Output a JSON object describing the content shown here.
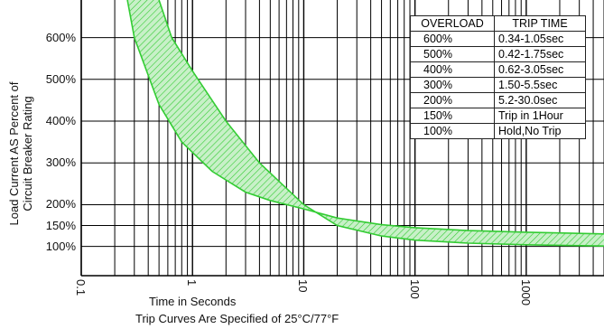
{
  "chart_data": {
    "type": "area",
    "title": "",
    "xlabel": "Time in Seconds",
    "ylabel_lines": [
      "Load Current AS Percent of",
      "Circuit Breaker Rating"
    ],
    "note": "Trip Curves Are Specified of 25°C/77°F",
    "x_scale": "log",
    "xlim": [
      0.1,
      5000
    ],
    "x_ticks": [
      "0.1",
      "1",
      "10",
      "100",
      "1000"
    ],
    "ylim": [
      30,
      690
    ],
    "y_ticks": [
      "100%",
      "150%",
      "200%",
      "300%",
      "400%",
      "500%",
      "600%"
    ],
    "y_tick_positions": [
      100,
      150,
      200,
      300,
      400,
      500,
      600
    ],
    "grid": true,
    "band_color": "#33cc33",
    "series": [
      {
        "points": [
          [
            0.26,
            690
          ],
          [
            0.3,
            600
          ],
          [
            0.5,
            440
          ],
          [
            0.8,
            350
          ],
          [
            1.5,
            280
          ],
          [
            3,
            230
          ],
          [
            5,
            210
          ],
          [
            10,
            190
          ],
          [
            20,
            168
          ],
          [
            50,
            152
          ],
          [
            100,
            145
          ],
          [
            300,
            138
          ],
          [
            1000,
            134
          ],
          [
            5000,
            130
          ]
        ]
      },
      {
        "points": [
          [
            0.5,
            690
          ],
          [
            0.65,
            600
          ],
          [
            1,
            520
          ],
          [
            2,
            400
          ],
          [
            4,
            300
          ],
          [
            10,
            200
          ],
          [
            20,
            150
          ],
          [
            50,
            125
          ],
          [
            100,
            115
          ],
          [
            300,
            108
          ],
          [
            1000,
            104
          ],
          [
            5000,
            101
          ]
        ]
      }
    ],
    "table": {
      "headers": [
        "OVERLOAD",
        "TRIP TIME"
      ],
      "rows": [
        [
          "600%",
          "0.34-1.05sec"
        ],
        [
          "500%",
          "0.42-1.75sec"
        ],
        [
          "400%",
          "0.62-3.05sec"
        ],
        [
          "300%",
          "1.50-5.5sec"
        ],
        [
          "200%",
          "5.2-30.0sec"
        ],
        [
          "150%",
          "Trip in 1Hour"
        ],
        [
          "100%",
          "Hold,No Trip"
        ]
      ]
    }
  }
}
